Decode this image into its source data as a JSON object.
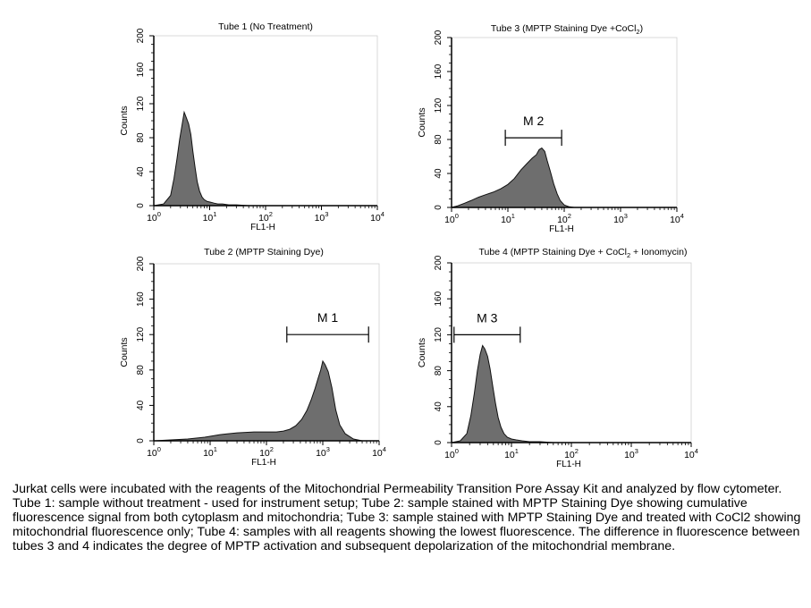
{
  "chart_data": [
    {
      "type": "area",
      "title": "Tube 1 (No Treatment)",
      "xlabel": "FL1-H",
      "ylabel": "Counts",
      "x_scale": "log",
      "xlim": [
        1,
        10000
      ],
      "ylim": [
        0,
        200
      ],
      "x_ticks": [
        "10^0",
        "10^1",
        "10^2",
        "10^3",
        "10^4"
      ],
      "y_ticks": [
        "0",
        "40",
        "80",
        "120",
        "160",
        "200"
      ],
      "marker": null,
      "series": [
        {
          "x": [
            1.0,
            1.5,
            2.0,
            2.3,
            2.6,
            2.9,
            3.2,
            3.5,
            3.8,
            4.2,
            4.6,
            5.0,
            5.5,
            6.0,
            6.6,
            7.3,
            8.0,
            9.0,
            10.5,
            12,
            14,
            17,
            22,
            30,
            50,
            100
          ],
          "y": [
            0,
            2,
            12,
            32,
            55,
            78,
            95,
            110,
            104,
            96,
            84,
            64,
            44,
            28,
            17,
            10,
            7,
            5,
            4,
            3,
            2,
            2,
            1,
            1,
            0,
            0
          ]
        }
      ]
    },
    {
      "type": "area",
      "title": "Tube 3 (MPTP Staining Dye +CoCl",
      "title_sub": "2",
      "title_end": ")",
      "xlabel": "FL1-H",
      "ylabel": "Counts",
      "x_scale": "log",
      "xlim": [
        1,
        10000
      ],
      "ylim": [
        0,
        200
      ],
      "x_ticks": [
        "10^0",
        "10^1",
        "10^2",
        "10^3",
        "10^4"
      ],
      "y_ticks": [
        "0",
        "40",
        "80",
        "120",
        "160",
        "200"
      ],
      "marker": {
        "label": "M 2",
        "x_start": 9,
        "x_end": 90,
        "y": 82
      },
      "series": [
        {
          "x": [
            1.0,
            1.3,
            1.7,
            2.2,
            3.0,
            4.0,
            5.5,
            7.5,
            10,
            13,
            17,
            22,
            27,
            32,
            36,
            40,
            45,
            50,
            57,
            65,
            75,
            85,
            100,
            120,
            150,
            200
          ],
          "y": [
            0,
            2,
            5,
            8,
            12,
            15,
            18,
            22,
            27,
            34,
            44,
            52,
            58,
            62,
            68,
            70,
            66,
            55,
            42,
            28,
            16,
            8,
            3,
            1,
            0,
            0
          ]
        }
      ]
    },
    {
      "type": "area",
      "title": "Tube 2 (MPTP Staining Dye)",
      "xlabel": "FL1-H",
      "ylabel": "Counts",
      "x_scale": "log",
      "xlim": [
        1,
        10000
      ],
      "ylim": [
        0,
        200
      ],
      "x_ticks": [
        "10^0",
        "10^1",
        "10^2",
        "10^3",
        "10^4"
      ],
      "y_ticks": [
        "0",
        "40",
        "80",
        "120",
        "160",
        "200"
      ],
      "marker": {
        "label": "M 1",
        "x_start": 230,
        "x_end": 6500,
        "y": 120
      },
      "series": [
        {
          "x": [
            1.0,
            2,
            4,
            8,
            15,
            30,
            60,
            100,
            150,
            200,
            260,
            330,
            420,
            520,
            620,
            720,
            820,
            920,
            1000,
            1100,
            1250,
            1450,
            1700,
            2000,
            2500,
            3500,
            5000
          ],
          "y": [
            0,
            1,
            2,
            4,
            7,
            9,
            10,
            10,
            10,
            11,
            13,
            17,
            24,
            34,
            46,
            58,
            70,
            80,
            90,
            86,
            78,
            60,
            35,
            18,
            8,
            2,
            0
          ]
        }
      ]
    },
    {
      "type": "area",
      "title": "Tube 4 (MPTP Staining Dye + CoCl",
      "title_sub": "2",
      "title_end": " + Ionomycin)",
      "xlabel": "FL1-H",
      "ylabel": "Counts",
      "x_scale": "log",
      "xlim": [
        1,
        10000
      ],
      "ylim": [
        0,
        200
      ],
      "x_ticks": [
        "10^0",
        "10^1",
        "10^2",
        "10^3",
        "10^4"
      ],
      "y_ticks": [
        "0",
        "40",
        "80",
        "120",
        "160",
        "200"
      ],
      "marker": {
        "label": "M 3",
        "x_start": 1.1,
        "x_end": 14,
        "y": 120
      },
      "series": [
        {
          "x": [
            1.0,
            1.4,
            1.8,
            2.1,
            2.4,
            2.7,
            3.0,
            3.3,
            3.6,
            4.0,
            4.4,
            4.9,
            5.4,
            6.0,
            6.7,
            7.5,
            8.5,
            10,
            12,
            15,
            20,
            30,
            50,
            100
          ],
          "y": [
            0,
            2,
            10,
            30,
            55,
            80,
            98,
            108,
            104,
            96,
            82,
            62,
            44,
            28,
            17,
            10,
            6,
            4,
            3,
            2,
            1,
            1,
            0,
            0
          ]
        }
      ]
    }
  ],
  "caption": "Jurkat cells were incubated with the reagents of the Mitochondrial Permeability Transition Pore Assay Kit and analyzed by flow cytometer. Tube 1: sample without treatment - used for instrument setup; Tube 2: sample stained with MPTP Staining Dye showing cumulative fluorescence signal from both cytoplasm and mitochondria; Tube 3: sample stained with MPTP Staining Dye and treated with CoCl2 showing mitochondrial fluorescence only; Tube 4: samples with all reagents showing the lowest fluorescence. The difference in fluorescence between tubes 3 and 4 indicates the degree of MPTP activation and subsequent depolarization of the mitochondrial membrane.",
  "colors": {
    "fill": "#6e6e6e",
    "axis": "#000000"
  }
}
